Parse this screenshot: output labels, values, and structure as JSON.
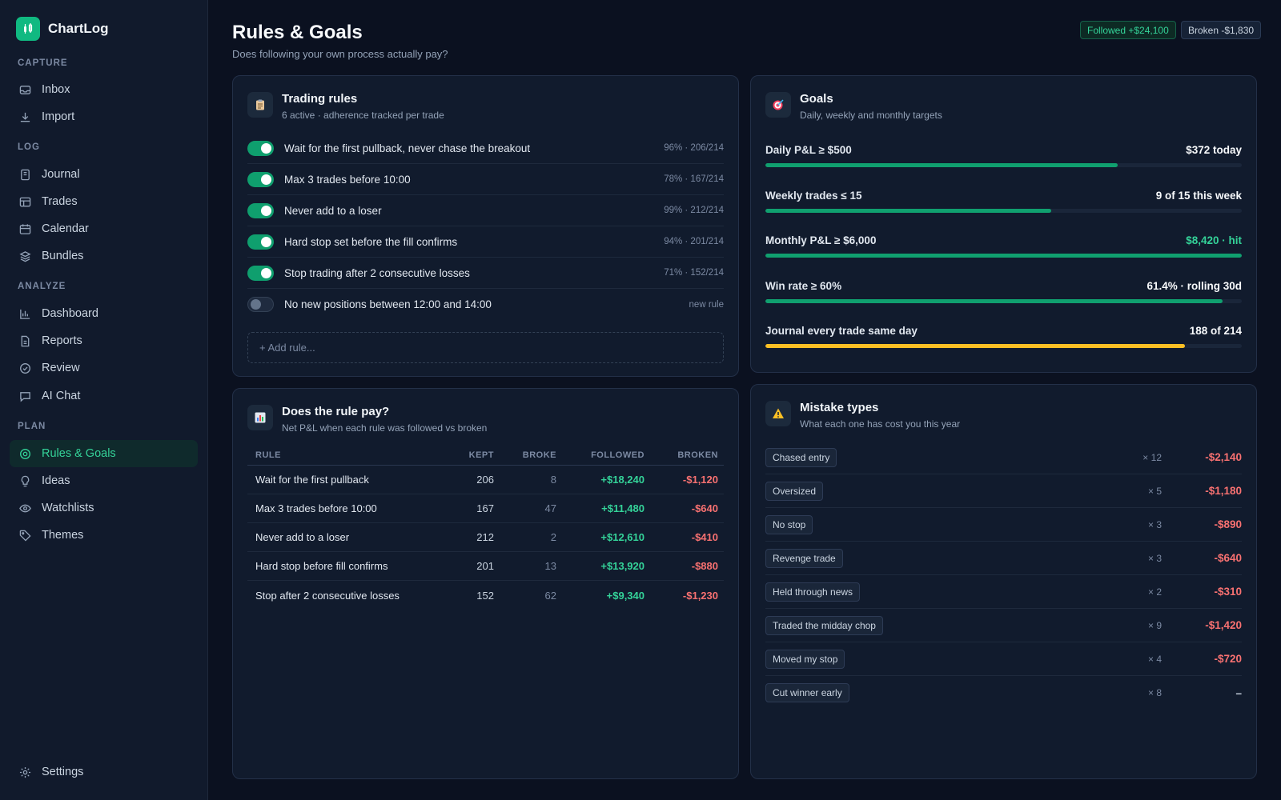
{
  "app": {
    "name": "ChartLog"
  },
  "sidebar": {
    "sections": [
      "CAPTURE",
      "LOG",
      "ANALYZE",
      "PLAN"
    ],
    "items": [
      {
        "label": "Inbox",
        "icon": "inbox-icon"
      },
      {
        "label": "Import",
        "icon": "download-icon"
      },
      {
        "label": "Journal",
        "icon": "notebook-icon"
      },
      {
        "label": "Trades",
        "icon": "table-icon"
      },
      {
        "label": "Calendar",
        "icon": "calendar-icon"
      },
      {
        "label": "Bundles",
        "icon": "layers-icon"
      },
      {
        "label": "Dashboard",
        "icon": "bar-chart-icon"
      },
      {
        "label": "Reports",
        "icon": "document-icon"
      },
      {
        "label": "Review",
        "icon": "check-circle-icon"
      },
      {
        "label": "AI Chat",
        "icon": "chat-icon"
      },
      {
        "label": "Rules & Goals",
        "icon": "target-icon",
        "active": true
      },
      {
        "label": "Ideas",
        "icon": "lightbulb-icon"
      },
      {
        "label": "Watchlists",
        "icon": "eye-icon"
      },
      {
        "label": "Themes",
        "icon": "tag-icon"
      }
    ],
    "settings_label": "Settings"
  },
  "header": {
    "title": "Rules & Goals",
    "subtitle": "Does following your own process actually pay?",
    "followed_pill": "Followed +$24,100",
    "broken_pill": "Broken -$1,830"
  },
  "rules_card": {
    "title": "Trading rules",
    "subtitle": "6 active · adherence tracked per trade",
    "rules": [
      {
        "text": "Wait for the first pullback, never chase the breakout",
        "stat": "96% · 206/214",
        "enabled": true
      },
      {
        "text": "Max 3 trades before 10:00",
        "stat": "78% · 167/214",
        "enabled": true
      },
      {
        "text": "Never add to a loser",
        "stat": "99% · 212/214",
        "enabled": true
      },
      {
        "text": "Hard stop set before the fill confirms",
        "stat": "94% · 201/214",
        "enabled": true
      },
      {
        "text": "Stop trading after 2 consecutive losses",
        "stat": "71% · 152/214",
        "enabled": true
      },
      {
        "text": "No new positions between 12:00 and 14:00",
        "stat": "new rule",
        "enabled": false
      }
    ],
    "add_placeholder": "+ Add rule..."
  },
  "goals_card": {
    "title": "Goals",
    "subtitle": "Daily, weekly and monthly targets",
    "goals": [
      {
        "label": "Daily P&L ≥ $500",
        "value": "$372 today",
        "progress": 0.74,
        "status": "normal"
      },
      {
        "label": "Weekly trades ≤ 15",
        "value": "9 of 15 this week",
        "progress": 0.6,
        "status": "normal"
      },
      {
        "label": "Monthly P&L ≥ $6,000",
        "value": "$8,420 · hit",
        "progress": 1.0,
        "status": "hit"
      },
      {
        "label": "Win rate ≥ 60%",
        "value": "61.4% · rolling 30d",
        "progress": 0.96,
        "status": "normal"
      },
      {
        "label": "Journal every trade same day",
        "value": "188 of 214",
        "progress": 0.88,
        "status": "warn"
      }
    ]
  },
  "pay_card": {
    "title": "Does the rule pay?",
    "subtitle": "Net P&L when each rule was followed vs broken",
    "columns": [
      "RULE",
      "KEPT",
      "BROKE",
      "FOLLOWED",
      "BROKEN"
    ],
    "rows": [
      {
        "rule": "Wait for the first pullback",
        "kept": "206",
        "broke": "8",
        "followed": "+$18,240",
        "broken": "-$1,120"
      },
      {
        "rule": "Max 3 trades before 10:00",
        "kept": "167",
        "broke": "47",
        "followed": "+$11,480",
        "broken": "-$640"
      },
      {
        "rule": "Never add to a loser",
        "kept": "212",
        "broke": "2",
        "followed": "+$12,610",
        "broken": "-$410"
      },
      {
        "rule": "Hard stop before fill confirms",
        "kept": "201",
        "broke": "13",
        "followed": "+$13,920",
        "broken": "-$880"
      },
      {
        "rule": "Stop after 2 consecutive losses",
        "kept": "152",
        "broke": "62",
        "followed": "+$9,340",
        "broken": "-$1,230"
      }
    ]
  },
  "mistakes_card": {
    "title": "Mistake types",
    "subtitle": "What each one has cost you this year",
    "mistakes": [
      {
        "tag": "Chased entry",
        "count": "× 12",
        "cost": "-$2,140"
      },
      {
        "tag": "Oversized",
        "count": "× 5",
        "cost": "-$1,180"
      },
      {
        "tag": "No stop",
        "count": "× 3",
        "cost": "-$890"
      },
      {
        "tag": "Revenge trade",
        "count": "× 3",
        "cost": "-$640"
      },
      {
        "tag": "Held through news",
        "count": "× 2",
        "cost": "-$310"
      },
      {
        "tag": "Traded the midday chop",
        "count": "× 9",
        "cost": "-$1,420"
      },
      {
        "tag": "Moved my stop",
        "count": "× 4",
        "cost": "-$720"
      },
      {
        "tag": "Cut winner early",
        "count": "× 8",
        "cost": "–"
      }
    ]
  },
  "colors": {
    "accent": "#10b981",
    "positive": "#34d399",
    "negative": "#f87171",
    "warning": "#fbbf24"
  }
}
